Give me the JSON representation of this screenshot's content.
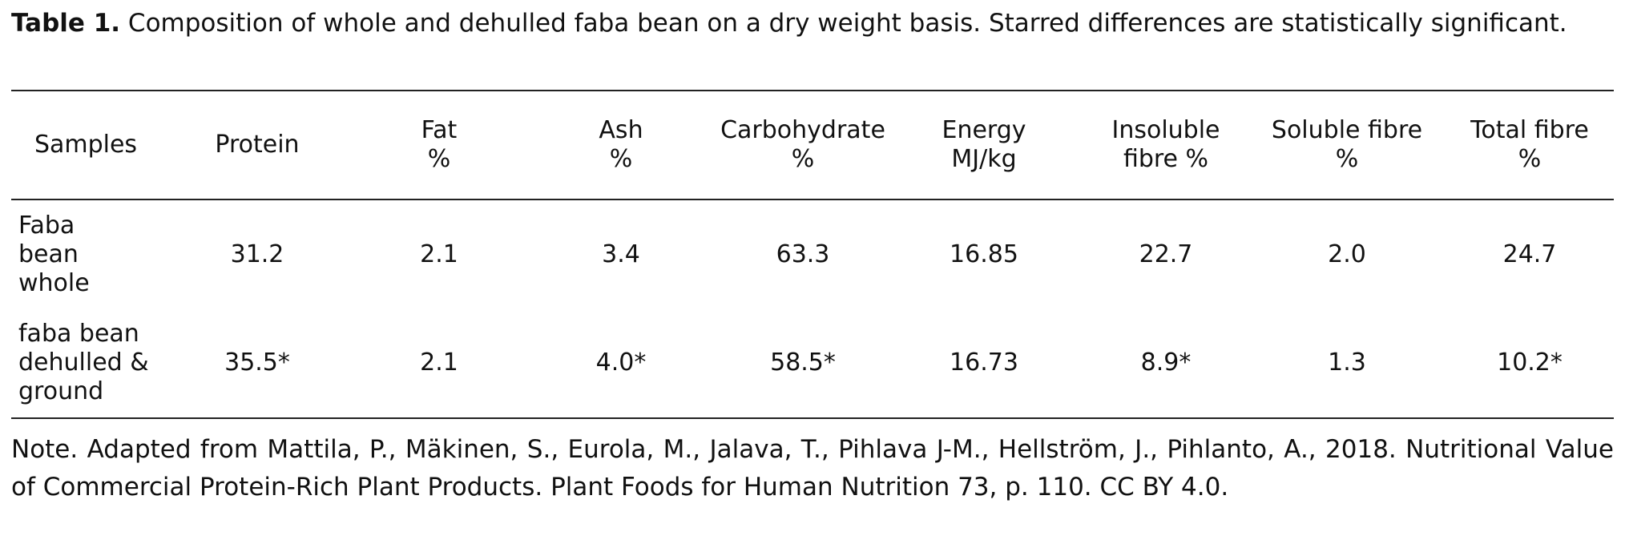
{
  "caption": {
    "label": "Table 1.",
    "text": "Composition of whole and dehulled faba bean on a dry weight basis. Starred differences are statistically significant."
  },
  "table": {
    "headers": [
      [
        "Samples"
      ],
      [
        "Protein"
      ],
      [
        "Fat",
        "%"
      ],
      [
        "Ash",
        "%"
      ],
      [
        "Carbohydrate",
        "%"
      ],
      [
        "Energy",
        "MJ/kg"
      ],
      [
        "Insoluble",
        "fibre %"
      ],
      [
        "Soluble fibre",
        "%"
      ],
      [
        "Total fibre",
        "%"
      ]
    ],
    "rows": [
      [
        [
          "Faba",
          "bean",
          "whole"
        ],
        "31.2",
        "2.1",
        "3.4",
        "63.3",
        "16.85",
        "22.7",
        "2.0",
        "24.7"
      ],
      [
        [
          "faba bean",
          "dehulled &",
          "ground"
        ],
        "35.5*",
        "2.1",
        "4.0*",
        "58.5*",
        "16.73",
        "8.9*",
        "1.3",
        "10.2*"
      ]
    ]
  },
  "note": "Note. Adapted from Mattila, P., Mäkinen, S., Eurola, M., Jalava, T., Pihlava J-M., Hellström, J., Pihlanto, A., 2018. Nutritional Value of Commercial Protein-Rich Plant Products. Plant Foods for Human Nutrition 73, p. 110. CC BY 4.0."
}
